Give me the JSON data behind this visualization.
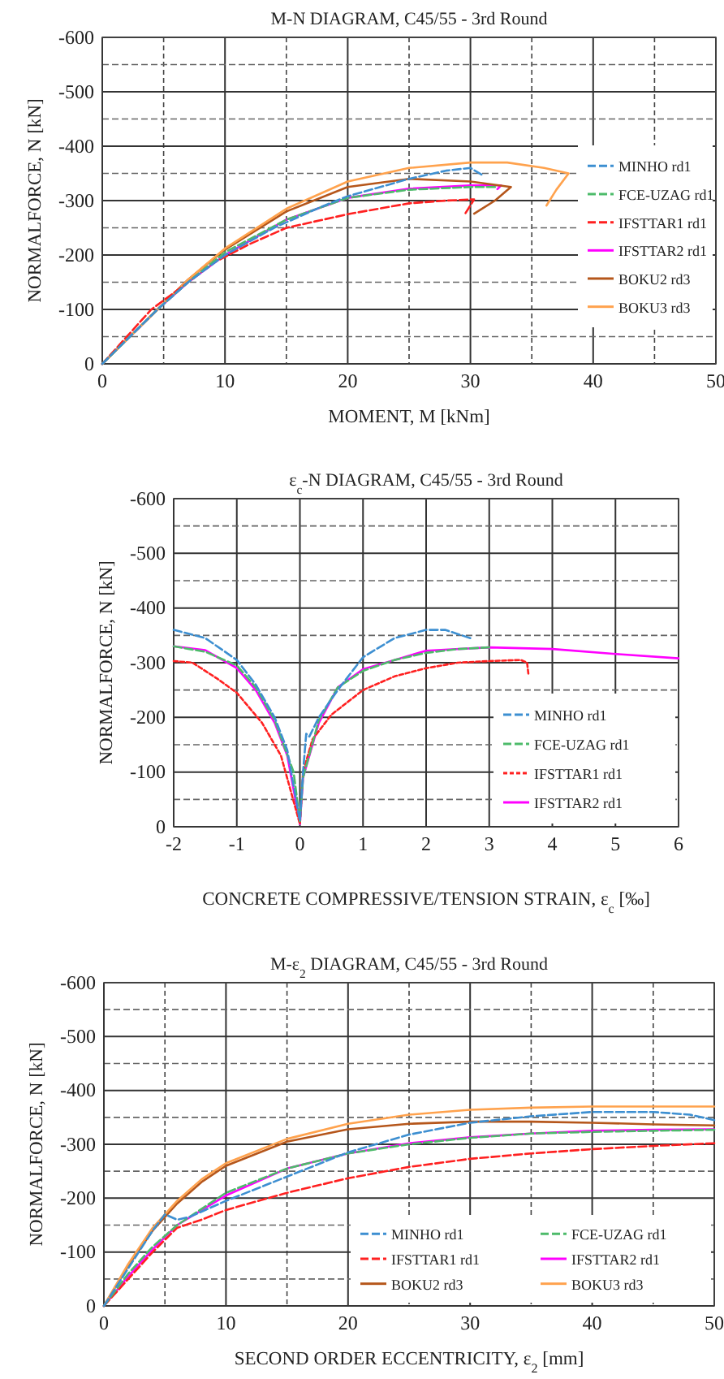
{
  "chart_data": [
    {
      "type": "line",
      "title": "M-N DIAGRAM, C45/55 - 3rd Round",
      "xlabel": "MOMENT, M [kNm]",
      "ylabel": "NORMALFORCE, N [kN]",
      "xlim": [
        0,
        50
      ],
      "ylim": [
        0,
        -600
      ],
      "xticks": [
        0,
        {
          "value": 5,
          "label": null
        },
        10,
        {
          "value": 15,
          "label": null
        },
        20,
        {
          "value": 25,
          "label": null
        },
        30,
        {
          "value": 35,
          "label": null
        },
        40,
        {
          "value": 45,
          "label": null
        },
        50
      ],
      "yticks": [
        0,
        {
          "value": -50,
          "label": null
        },
        -100,
        {
          "value": -150,
          "label": null
        },
        -200,
        {
          "value": -250,
          "label": null
        },
        -300,
        {
          "value": -350,
          "label": null
        },
        -400,
        {
          "value": -450,
          "label": null
        },
        -500,
        {
          "value": -550,
          "label": null
        },
        -600
      ],
      "grid": true,
      "legend": "right",
      "marker": "none",
      "series": [
        {
          "name": "MINHO rd1",
          "color": "#3d8fd1",
          "line_style": "dashed",
          "x": [
            0,
            4.5,
            7,
            10,
            14,
            18,
            20,
            25,
            28,
            30,
            30.9
          ],
          "values": [
            0,
            -100,
            -150,
            -200,
            -250,
            -290,
            -308,
            -340,
            -355,
            -360,
            -348
          ]
        },
        {
          "name": "FCE-UZAG rd1",
          "color": "#4dbb6a",
          "line_style": "dashed",
          "x": [
            0,
            4.5,
            7,
            10,
            15,
            20,
            25,
            30,
            32
          ],
          "values": [
            0,
            -100,
            -150,
            -205,
            -265,
            -305,
            -320,
            -325,
            -325
          ]
        },
        {
          "name": "IFSTTAR1 rd1",
          "color": "#ff2020",
          "line_style": "dashed",
          "x": [
            0,
            4,
            7,
            9,
            12,
            15,
            20,
            25,
            28,
            30,
            30.3,
            29.6
          ],
          "values": [
            0,
            -100,
            -150,
            -185,
            -220,
            -250,
            -275,
            -295,
            -300,
            -302,
            -302,
            -277
          ]
        },
        {
          "name": "IFSTTAR2 rd1",
          "color": "#ff00ff",
          "line_style": "solid",
          "x": [
            0,
            4.5,
            7,
            10,
            15,
            20,
            25,
            30,
            32.5,
            32.2
          ],
          "values": [
            0,
            -100,
            -150,
            -200,
            -265,
            -305,
            -322,
            -328,
            -328,
            -321
          ]
        },
        {
          "name": "BOKU2 rd3",
          "color": "#b5561b",
          "line_style": "solid",
          "x": [
            0,
            4.5,
            7,
            10,
            15,
            20,
            25,
            30,
            33.3,
            32,
            30.3
          ],
          "values": [
            0,
            -100,
            -155,
            -210,
            -280,
            -325,
            -340,
            -335,
            -325,
            -300,
            -276
          ]
        },
        {
          "name": "BOKU3 rd3",
          "color": "#ffa24d",
          "line_style": "solid",
          "x": [
            0,
            4.5,
            7,
            10,
            15,
            20,
            25,
            30,
            33,
            36,
            38,
            37,
            36.2
          ],
          "values": [
            0,
            -100,
            -155,
            -212,
            -285,
            -335,
            -360,
            -370,
            -370,
            -360,
            -350,
            -320,
            -291
          ]
        }
      ]
    },
    {
      "type": "line",
      "title": "ε$_{c}$-N DIAGRAM, C45/55 - 3rd Round",
      "xlabel": "CONCRETE COMPRESSIVE/TENSION STRAIN, ε$_{c}$ [‰]",
      "ylabel": "NORMALFORCE, N [kN]",
      "xlim": [
        -2,
        6
      ],
      "ylim": [
        0,
        -600
      ],
      "xticks": [
        -2,
        -1,
        0,
        1,
        2,
        3,
        4,
        5,
        6
      ],
      "yticks": [
        0,
        {
          "value": -50,
          "label": null
        },
        -100,
        {
          "value": -150,
          "label": null
        },
        -200,
        {
          "value": -250,
          "label": null
        },
        -300,
        {
          "value": -350,
          "label": null
        },
        -400,
        {
          "value": -450,
          "label": null
        },
        -500,
        {
          "value": -550,
          "label": null
        },
        -600
      ],
      "grid": true,
      "legend": "bottom right",
      "marker": "none",
      "series": [
        {
          "name": "MINHO rd1",
          "color": "#3d8fd1",
          "line_style": "dashed",
          "x": [
            -2,
            -1.5,
            -1,
            -0.7,
            -0.4,
            -0.2,
            0,
            0.05,
            0.1,
            0.15,
            0.3,
            0.6,
            1,
            1.5,
            2,
            2.3,
            2.7
          ],
          "values": [
            -360,
            -345,
            -305,
            -260,
            -200,
            -140,
            -10,
            -100,
            -170,
            -165,
            -200,
            -250,
            -310,
            -345,
            -360,
            -360,
            -345
          ]
        },
        {
          "name": "FCE-UZAG rd1",
          "color": "#4dbb6a",
          "line_style": "dashed",
          "x": [
            -2,
            -1.5,
            -1,
            -0.7,
            -0.4,
            -0.1,
            0,
            0.05,
            0.3,
            0.6,
            1,
            1.5,
            2,
            2.5,
            3
          ],
          "values": [
            -330,
            -320,
            -295,
            -255,
            -195,
            -100,
            -10,
            -90,
            -195,
            -255,
            -285,
            -305,
            -318,
            -325,
            -328
          ]
        },
        {
          "name": "IFSTTAR1 rd1",
          "color": "#ff2020",
          "line_style": "dotted",
          "x": [
            -2,
            -1.7,
            -1.3,
            -1,
            -0.6,
            -0.3,
            0,
            0.05,
            0.2,
            0.5,
            1,
            1.5,
            2,
            2.5,
            3,
            3.5,
            3.6,
            3.62
          ],
          "values": [
            -303,
            -300,
            -270,
            -245,
            -190,
            -130,
            -5,
            -100,
            -160,
            -205,
            -250,
            -275,
            -290,
            -300,
            -303,
            -305,
            -300,
            -280
          ]
        },
        {
          "name": "IFSTTAR2 rd1",
          "color": "#ff00ff",
          "line_style": "solid",
          "x": [
            -2,
            -1.5,
            -1,
            -0.7,
            -0.4,
            -0.2,
            0,
            0.05,
            0.3,
            0.6,
            1,
            1.5,
            2,
            3,
            4,
            5,
            6
          ],
          "values": [
            -330,
            -323,
            -290,
            -250,
            -190,
            -130,
            -5,
            -90,
            -190,
            -255,
            -288,
            -305,
            -322,
            -328,
            -325,
            -316,
            -308
          ]
        }
      ]
    },
    {
      "type": "line",
      "title": "M-ε$_{2}$ DIAGRAM, C45/55 - 3rd Round",
      "xlabel": "SECOND ORDER ECCENTRICITY, ε$_{2}$ [mm]",
      "ylabel": "NORMALFORCE, N [kN]",
      "xlim": [
        0,
        50
      ],
      "ylim": [
        0,
        -600
      ],
      "xticks": [
        0,
        {
          "value": 5,
          "label": null
        },
        10,
        {
          "value": 15,
          "label": null
        },
        20,
        {
          "value": 25,
          "label": null
        },
        30,
        {
          "value": 35,
          "label": null
        },
        40,
        {
          "value": 45,
          "label": null
        },
        50
      ],
      "yticks": [
        0,
        {
          "value": -50,
          "label": null
        },
        -100,
        {
          "value": -150,
          "label": null
        },
        -200,
        {
          "value": -250,
          "label": null
        },
        -300,
        {
          "value": -350,
          "label": null
        },
        -400,
        {
          "value": -450,
          "label": null
        },
        -500,
        {
          "value": -550,
          "label": null
        },
        -600
      ],
      "grid": true,
      "legend": "bottom right",
      "marker": "none",
      "series": [
        {
          "name": "MINHO rd1",
          "color": "#3d8fd1",
          "line_style": "dashed",
          "x": [
            0,
            2,
            4,
            5,
            6,
            7,
            10,
            15,
            20,
            25,
            30,
            35,
            40,
            45,
            48,
            50
          ],
          "values": [
            0,
            -70,
            -140,
            -170,
            -160,
            -165,
            -195,
            -240,
            -285,
            -318,
            -340,
            -352,
            -360,
            -360,
            -355,
            -345
          ]
        },
        {
          "name": "FCE-UZAG rd1",
          "color": "#4dbb6a",
          "line_style": "dashed",
          "x": [
            0,
            2,
            4,
            6,
            10,
            15,
            20,
            25,
            30,
            35,
            40,
            45,
            50
          ],
          "values": [
            0,
            -60,
            -110,
            -150,
            -210,
            -255,
            -283,
            -300,
            -312,
            -320,
            -323,
            -325,
            -327
          ]
        },
        {
          "name": "IFSTTAR1 rd1",
          "color": "#ff2020",
          "line_style": "dashed",
          "x": [
            0,
            2,
            4,
            6,
            8,
            10,
            15,
            20,
            25,
            30,
            35,
            40,
            45,
            50
          ],
          "values": [
            0,
            -50,
            -100,
            -145,
            -160,
            -178,
            -210,
            -237,
            -258,
            -273,
            -283,
            -291,
            -297,
            -302
          ]
        },
        {
          "name": "IFSTTAR2 rd1",
          "color": "#ff00ff",
          "line_style": "solid",
          "x": [
            0,
            2,
            4,
            6,
            10,
            15,
            20,
            25,
            30,
            35,
            40,
            45,
            50
          ],
          "values": [
            0,
            -55,
            -105,
            -150,
            -205,
            -255,
            -283,
            -302,
            -313,
            -320,
            -325,
            -327,
            -328
          ]
        },
        {
          "name": "BOKU2 rd3",
          "color": "#b5561b",
          "line_style": "solid",
          "x": [
            0,
            2,
            4,
            6,
            8,
            10,
            15,
            20,
            25,
            30,
            35,
            40,
            45,
            50
          ],
          "values": [
            0,
            -75,
            -140,
            -190,
            -230,
            -260,
            -305,
            -328,
            -338,
            -342,
            -342,
            -340,
            -337,
            -335
          ]
        },
        {
          "name": "BOKU3 rd3",
          "color": "#ffa24d",
          "line_style": "solid",
          "x": [
            0,
            2,
            4,
            6,
            8,
            10,
            15,
            20,
            25,
            30,
            35,
            40,
            45,
            50
          ],
          "values": [
            0,
            -78,
            -145,
            -195,
            -235,
            -265,
            -310,
            -338,
            -355,
            -364,
            -368,
            -370,
            -370,
            -370
          ]
        }
      ]
    }
  ]
}
